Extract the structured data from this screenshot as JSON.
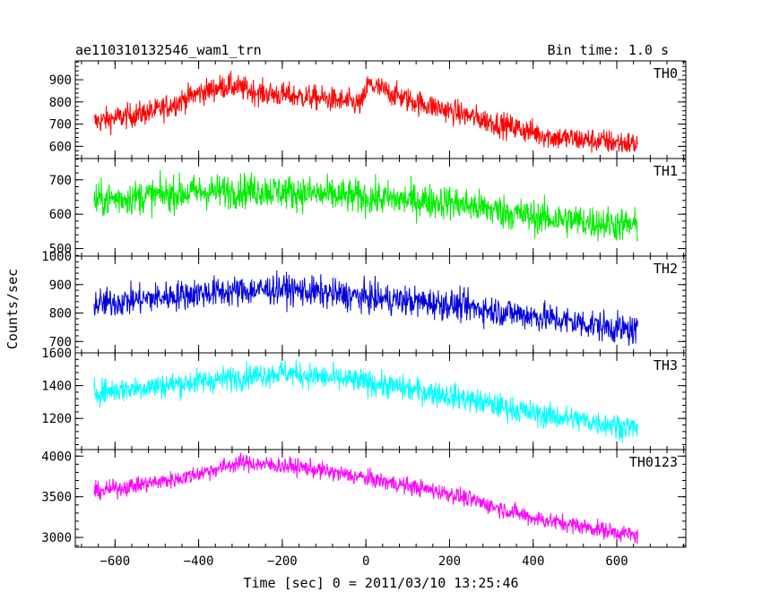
{
  "chart_data": {
    "type": "line",
    "title": "ae110310132546_wam1_trn",
    "bin_time_label": "Bin time: 1.0 s",
    "xlabel": "Time [sec] 0 = 2011/03/10 13:25:46",
    "ylabel": "Counts/sec",
    "xlim": [
      -695,
      765
    ],
    "x_ticks": [
      -600,
      -400,
      -200,
      0,
      200,
      400,
      600
    ],
    "x_range": [
      -650,
      650
    ],
    "panels": [
      {
        "name": "TH0",
        "color": "#ff0000",
        "ylim": [
          545,
          985
        ],
        "y_ticks": [
          600,
          700,
          800,
          900
        ],
        "noise": 40,
        "trend": [
          [
            -650,
            710
          ],
          [
            -500,
            760
          ],
          [
            -400,
            840
          ],
          [
            -330,
            875
          ],
          [
            -250,
            840
          ],
          [
            -100,
            815
          ],
          [
            -10,
            790
          ],
          [
            5,
            880
          ],
          [
            100,
            810
          ],
          [
            300,
            710
          ],
          [
            450,
            640
          ],
          [
            650,
            610
          ]
        ]
      },
      {
        "name": "TH1",
        "color": "#00ee00",
        "ylim": [
          478,
          762
        ],
        "y_ticks": [
          500,
          600,
          700
        ],
        "noise": 36,
        "trend": [
          [
            -650,
            640
          ],
          [
            -400,
            665
          ],
          [
            -250,
            670
          ],
          [
            0,
            648
          ],
          [
            200,
            635
          ],
          [
            400,
            592
          ],
          [
            650,
            565
          ]
        ]
      },
      {
        "name": "TH2",
        "color": "#0000dd",
        "ylim": [
          660,
          1000
        ],
        "y_ticks": [
          700,
          800,
          900,
          1000
        ],
        "noise": 38,
        "trend": [
          [
            -650,
            830
          ],
          [
            -400,
            870
          ],
          [
            -200,
            885
          ],
          [
            0,
            855
          ],
          [
            200,
            830
          ],
          [
            400,
            790
          ],
          [
            650,
            735
          ]
        ]
      },
      {
        "name": "TH3",
        "color": "#00ffff",
        "ylim": [
          1010,
          1600
        ],
        "y_ticks": [
          1200,
          1400,
          1600
        ],
        "noise": 55,
        "trend": [
          [
            -650,
            1360
          ],
          [
            -450,
            1410
          ],
          [
            -200,
            1480
          ],
          [
            0,
            1420
          ],
          [
            200,
            1340
          ],
          [
            400,
            1230
          ],
          [
            650,
            1140
          ]
        ]
      },
      {
        "name": "TH0123",
        "color": "#ff00ff",
        "ylim": [
          2880,
          4080
        ],
        "y_ticks": [
          3000,
          3500,
          4000
        ],
        "noise": 75,
        "trend": [
          [
            -650,
            3560
          ],
          [
            -450,
            3720
          ],
          [
            -300,
            3920
          ],
          [
            -150,
            3860
          ],
          [
            0,
            3730
          ],
          [
            200,
            3540
          ],
          [
            400,
            3240
          ],
          [
            650,
            3020
          ]
        ]
      }
    ]
  }
}
